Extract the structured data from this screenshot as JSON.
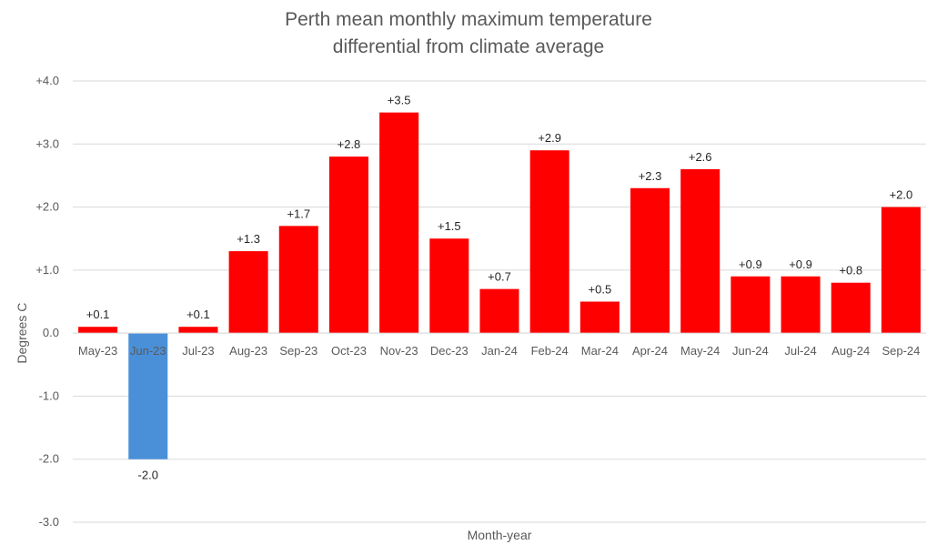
{
  "chart_data": {
    "type": "bar",
    "title_lines": [
      "Perth mean monthly maximum temperature",
      "differential from climate average"
    ],
    "xlabel": "Month-year",
    "ylabel": "Degrees C",
    "ylim": [
      -3.0,
      4.0
    ],
    "yticks": [
      "+4.0",
      "+3.0",
      "+2.0",
      "+1.0",
      "0.0",
      "-1.0",
      "-2.0",
      "-3.0"
    ],
    "ytick_values": [
      4,
      3,
      2,
      1,
      0,
      -1,
      -2,
      -3
    ],
    "grid": true,
    "categories": [
      "May-23",
      "Jun-23",
      "Jul-23",
      "Aug-23",
      "Sep-23",
      "Oct-23",
      "Nov-23",
      "Dec-23",
      "Jan-24",
      "Feb-24",
      "Mar-24",
      "Apr-24",
      "May-24",
      "Jun-24",
      "Jul-24",
      "Aug-24",
      "Sep-24"
    ],
    "values": [
      0.1,
      -2.0,
      0.1,
      1.3,
      1.7,
      2.8,
      3.5,
      1.5,
      0.7,
      2.9,
      0.5,
      2.3,
      2.6,
      0.9,
      0.9,
      0.8,
      2.0
    ],
    "data_labels": [
      "+0.1",
      "-2.0",
      "+0.1",
      "+1.3",
      "+1.7",
      "+2.8",
      "+3.5",
      "+1.5",
      "+0.7",
      "+2.9",
      "+0.5",
      "+2.3",
      "+2.6",
      "+0.9",
      "+0.9",
      "+0.8",
      "+2.0"
    ],
    "colors": {
      "positive": "#ff0000",
      "negative": "#4a90d9",
      "grid": "#d9d9d9",
      "text": "#595959",
      "label": "#262626"
    }
  }
}
